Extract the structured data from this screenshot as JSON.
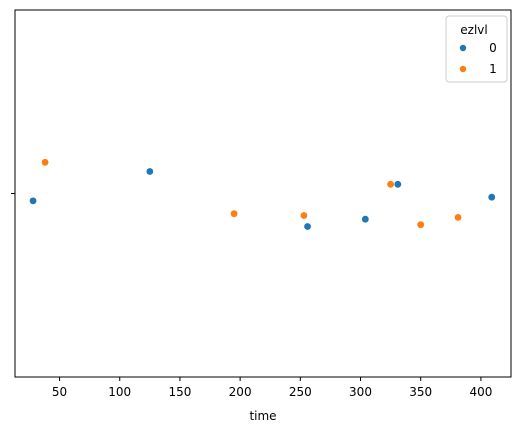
{
  "chart_data": {
    "type": "scatter",
    "title": "",
    "xlabel": "time",
    "ylabel": "",
    "xlim": [
      13,
      425
    ],
    "ylim": [
      -1,
      1
    ],
    "xticks": [
      50,
      100,
      150,
      200,
      250,
      300,
      350,
      400
    ],
    "grid": false,
    "legend": {
      "title": "ezlvl",
      "position": "top-right"
    },
    "series": [
      {
        "name": "0",
        "color": "#1f77b4",
        "points": [
          {
            "x": 28,
            "y": -0.04
          },
          {
            "x": 125,
            "y": 0.12
          },
          {
            "x": 256,
            "y": -0.18
          },
          {
            "x": 304,
            "y": -0.14
          },
          {
            "x": 331,
            "y": 0.05
          },
          {
            "x": 409,
            "y": -0.02
          }
        ]
      },
      {
        "name": "1",
        "color": "#ff7f0e",
        "points": [
          {
            "x": 38,
            "y": 0.17
          },
          {
            "x": 195,
            "y": -0.11
          },
          {
            "x": 253,
            "y": -0.12
          },
          {
            "x": 325,
            "y": 0.05
          },
          {
            "x": 350,
            "y": -0.17
          },
          {
            "x": 381,
            "y": -0.13
          }
        ]
      }
    ]
  }
}
